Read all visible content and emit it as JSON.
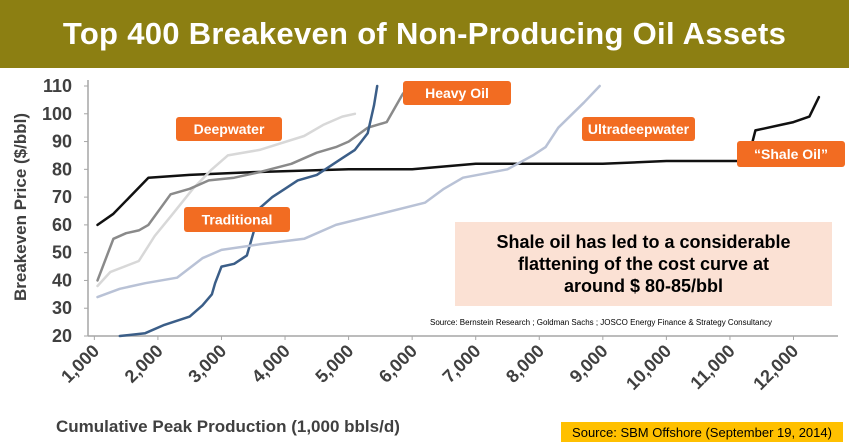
{
  "header": {
    "title": "Top 400 Breakeven of Non-Producing Oil Assets"
  },
  "note": {
    "text": "Shale oil has led to a considerable\nflattening of the cost curve at\naround $ 80-85/bbl"
  },
  "sources": {
    "chart_source": "Source:  Bernstein Research ; Goldman Sachs ; JOSCO Energy Finance & Strategy Consultancy",
    "slide_source": "Source: SBM Offshore (September 19, 2014)"
  },
  "colors": {
    "title_bar": "#8c7f12",
    "tag": "#f26c22",
    "note_bg": "#fbe1d4",
    "badge": "#ffc000"
  },
  "chart_data": {
    "type": "line",
    "xlabel": "Cumulative Peak Production (1,000 bbls/d)",
    "ylabel": "Breakeven Price ($/bbl)",
    "xlim": [
      900,
      12700
    ],
    "ylim": [
      20,
      110
    ],
    "xticks": [
      "1,000",
      "2,000",
      "3,000",
      "4,000",
      "5,000",
      "6,000",
      "7,000",
      "8,000",
      "9,000",
      "10,000",
      "11,000",
      "12,000"
    ],
    "xtick_values": [
      1000,
      2000,
      3000,
      4000,
      5000,
      6000,
      7000,
      8000,
      9000,
      10000,
      11000,
      12000
    ],
    "yticks": [
      20,
      30,
      40,
      50,
      60,
      70,
      80,
      90,
      100,
      110
    ],
    "grid": false,
    "series": [
      {
        "name": "Shale Oil",
        "color": "#111111",
        "points": [
          [
            1050,
            60
          ],
          [
            1300,
            64
          ],
          [
            1850,
            77
          ],
          [
            2500,
            78
          ],
          [
            3500,
            79
          ],
          [
            5000,
            80
          ],
          [
            6000,
            80
          ],
          [
            7000,
            82
          ],
          [
            8000,
            82
          ],
          [
            9000,
            82
          ],
          [
            10000,
            83
          ],
          [
            11200,
            83
          ],
          [
            11300,
            85
          ],
          [
            11400,
            94
          ],
          [
            11800,
            96
          ],
          [
            12000,
            97
          ],
          [
            12250,
            99
          ],
          [
            12400,
            106
          ]
        ]
      },
      {
        "name": "Deepwater",
        "color": "#d8d8d8",
        "points": [
          [
            1050,
            38
          ],
          [
            1250,
            43
          ],
          [
            1700,
            47
          ],
          [
            1950,
            56
          ],
          [
            2200,
            63
          ],
          [
            2550,
            73
          ],
          [
            2850,
            80
          ],
          [
            3100,
            85
          ],
          [
            3600,
            87
          ],
          [
            4300,
            92
          ],
          [
            4600,
            96
          ],
          [
            4900,
            99
          ],
          [
            5100,
            100
          ]
        ]
      },
      {
        "name": "Heavy Oil",
        "color": "#8a8a8a",
        "points": [
          [
            1050,
            40
          ],
          [
            1300,
            55
          ],
          [
            1500,
            57
          ],
          [
            1700,
            58
          ],
          [
            1850,
            60
          ],
          [
            2200,
            71
          ],
          [
            2500,
            73
          ],
          [
            2800,
            76
          ],
          [
            3200,
            77
          ],
          [
            3600,
            79
          ],
          [
            4100,
            82
          ],
          [
            4500,
            86
          ],
          [
            4800,
            88
          ],
          [
            5000,
            90
          ],
          [
            5300,
            95
          ],
          [
            5600,
            97
          ],
          [
            5850,
            107
          ],
          [
            5950,
            110
          ]
        ]
      },
      {
        "name": "Traditional",
        "color": "#3b5e88",
        "points": [
          [
            1400,
            20
          ],
          [
            1800,
            21
          ],
          [
            2100,
            24
          ],
          [
            2500,
            27
          ],
          [
            2700,
            31
          ],
          [
            2850,
            35
          ],
          [
            2900,
            39
          ],
          [
            3000,
            45
          ],
          [
            3200,
            46
          ],
          [
            3400,
            49
          ],
          [
            3500,
            57
          ],
          [
            3600,
            66
          ],
          [
            3800,
            70
          ],
          [
            4000,
            73
          ],
          [
            4200,
            76
          ],
          [
            4500,
            78
          ],
          [
            4700,
            81
          ],
          [
            4900,
            84
          ],
          [
            5100,
            87
          ],
          [
            5300,
            93
          ],
          [
            5400,
            103
          ],
          [
            5450,
            110
          ]
        ]
      },
      {
        "name": "Ultradeepwater",
        "color": "#b9c2d6",
        "points": [
          [
            1050,
            34
          ],
          [
            1400,
            37
          ],
          [
            1800,
            39
          ],
          [
            2300,
            41
          ],
          [
            2700,
            48
          ],
          [
            3000,
            51
          ],
          [
            3600,
            53
          ],
          [
            4300,
            55
          ],
          [
            4800,
            60
          ],
          [
            5500,
            64
          ],
          [
            6200,
            68
          ],
          [
            6500,
            73
          ],
          [
            6800,
            77
          ],
          [
            7500,
            80
          ],
          [
            7900,
            85
          ],
          [
            8100,
            88
          ],
          [
            8300,
            95
          ],
          [
            8700,
            104
          ],
          [
            8950,
            110
          ]
        ]
      }
    ]
  },
  "tags": [
    {
      "label": "Deepwater"
    },
    {
      "label": "Heavy Oil"
    },
    {
      "label": "Ultradeepwater"
    },
    {
      "label": "Traditional"
    },
    {
      "label": "“Shale Oil”"
    }
  ]
}
